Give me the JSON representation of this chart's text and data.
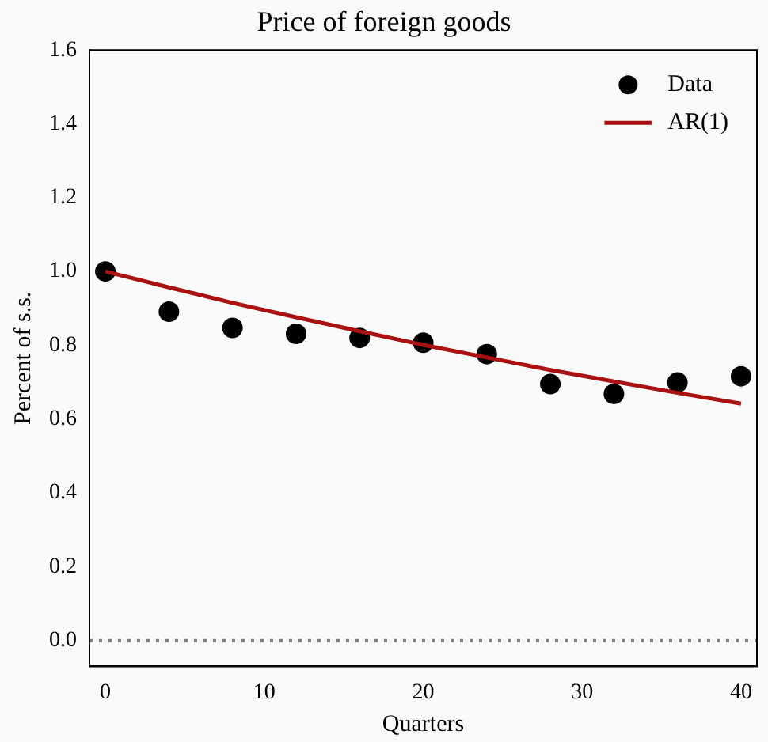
{
  "chart_data": {
    "type": "scatter",
    "title": "Price of foreign goods",
    "xlabel": "Quarters",
    "ylabel": "Percent of s.s.",
    "x": [
      0,
      4,
      8,
      12,
      16,
      20,
      24,
      28,
      32,
      36,
      40
    ],
    "series": [
      {
        "name": "Data",
        "type": "scatter",
        "color": "#000000",
        "marker": "circle",
        "values": [
          1.0,
          0.891,
          0.847,
          0.831,
          0.82,
          0.807,
          0.776,
          0.695,
          0.668,
          0.699,
          0.716
        ]
      },
      {
        "name": "AR(1)",
        "type": "line",
        "color": "#aa1111",
        "marker": "none",
        "line_style": "solid",
        "values": [
          1.0,
          0.957,
          0.915,
          0.876,
          0.838,
          0.801,
          0.767,
          0.733,
          0.702,
          0.671,
          0.642
        ]
      }
    ],
    "xlim": [
      -1,
      41
    ],
    "xticks": [
      0,
      10,
      20,
      30,
      40
    ],
    "ylim": [
      -0.07,
      1.6
    ],
    "yticks": [
      {
        "value": 0,
        "label": "0.0"
      },
      {
        "value": 0.2,
        "label": "0.2"
      },
      {
        "value": 0.4,
        "label": "0.4"
      },
      {
        "value": 0.6,
        "label": "0.6"
      },
      {
        "value": 0.8,
        "label": "0.8"
      },
      {
        "value": 1,
        "label": "1.0"
      },
      {
        "value": 1.2,
        "label": "1.2"
      },
      {
        "value": 1.4,
        "label": "1.4"
      },
      {
        "value": 1.6,
        "label": "1.6"
      }
    ],
    "ref_lines": [
      {
        "axis": "y",
        "value": 0,
        "color": "#808080",
        "line_style": "dotted"
      }
    ],
    "legend": "top right",
    "grid": false
  }
}
